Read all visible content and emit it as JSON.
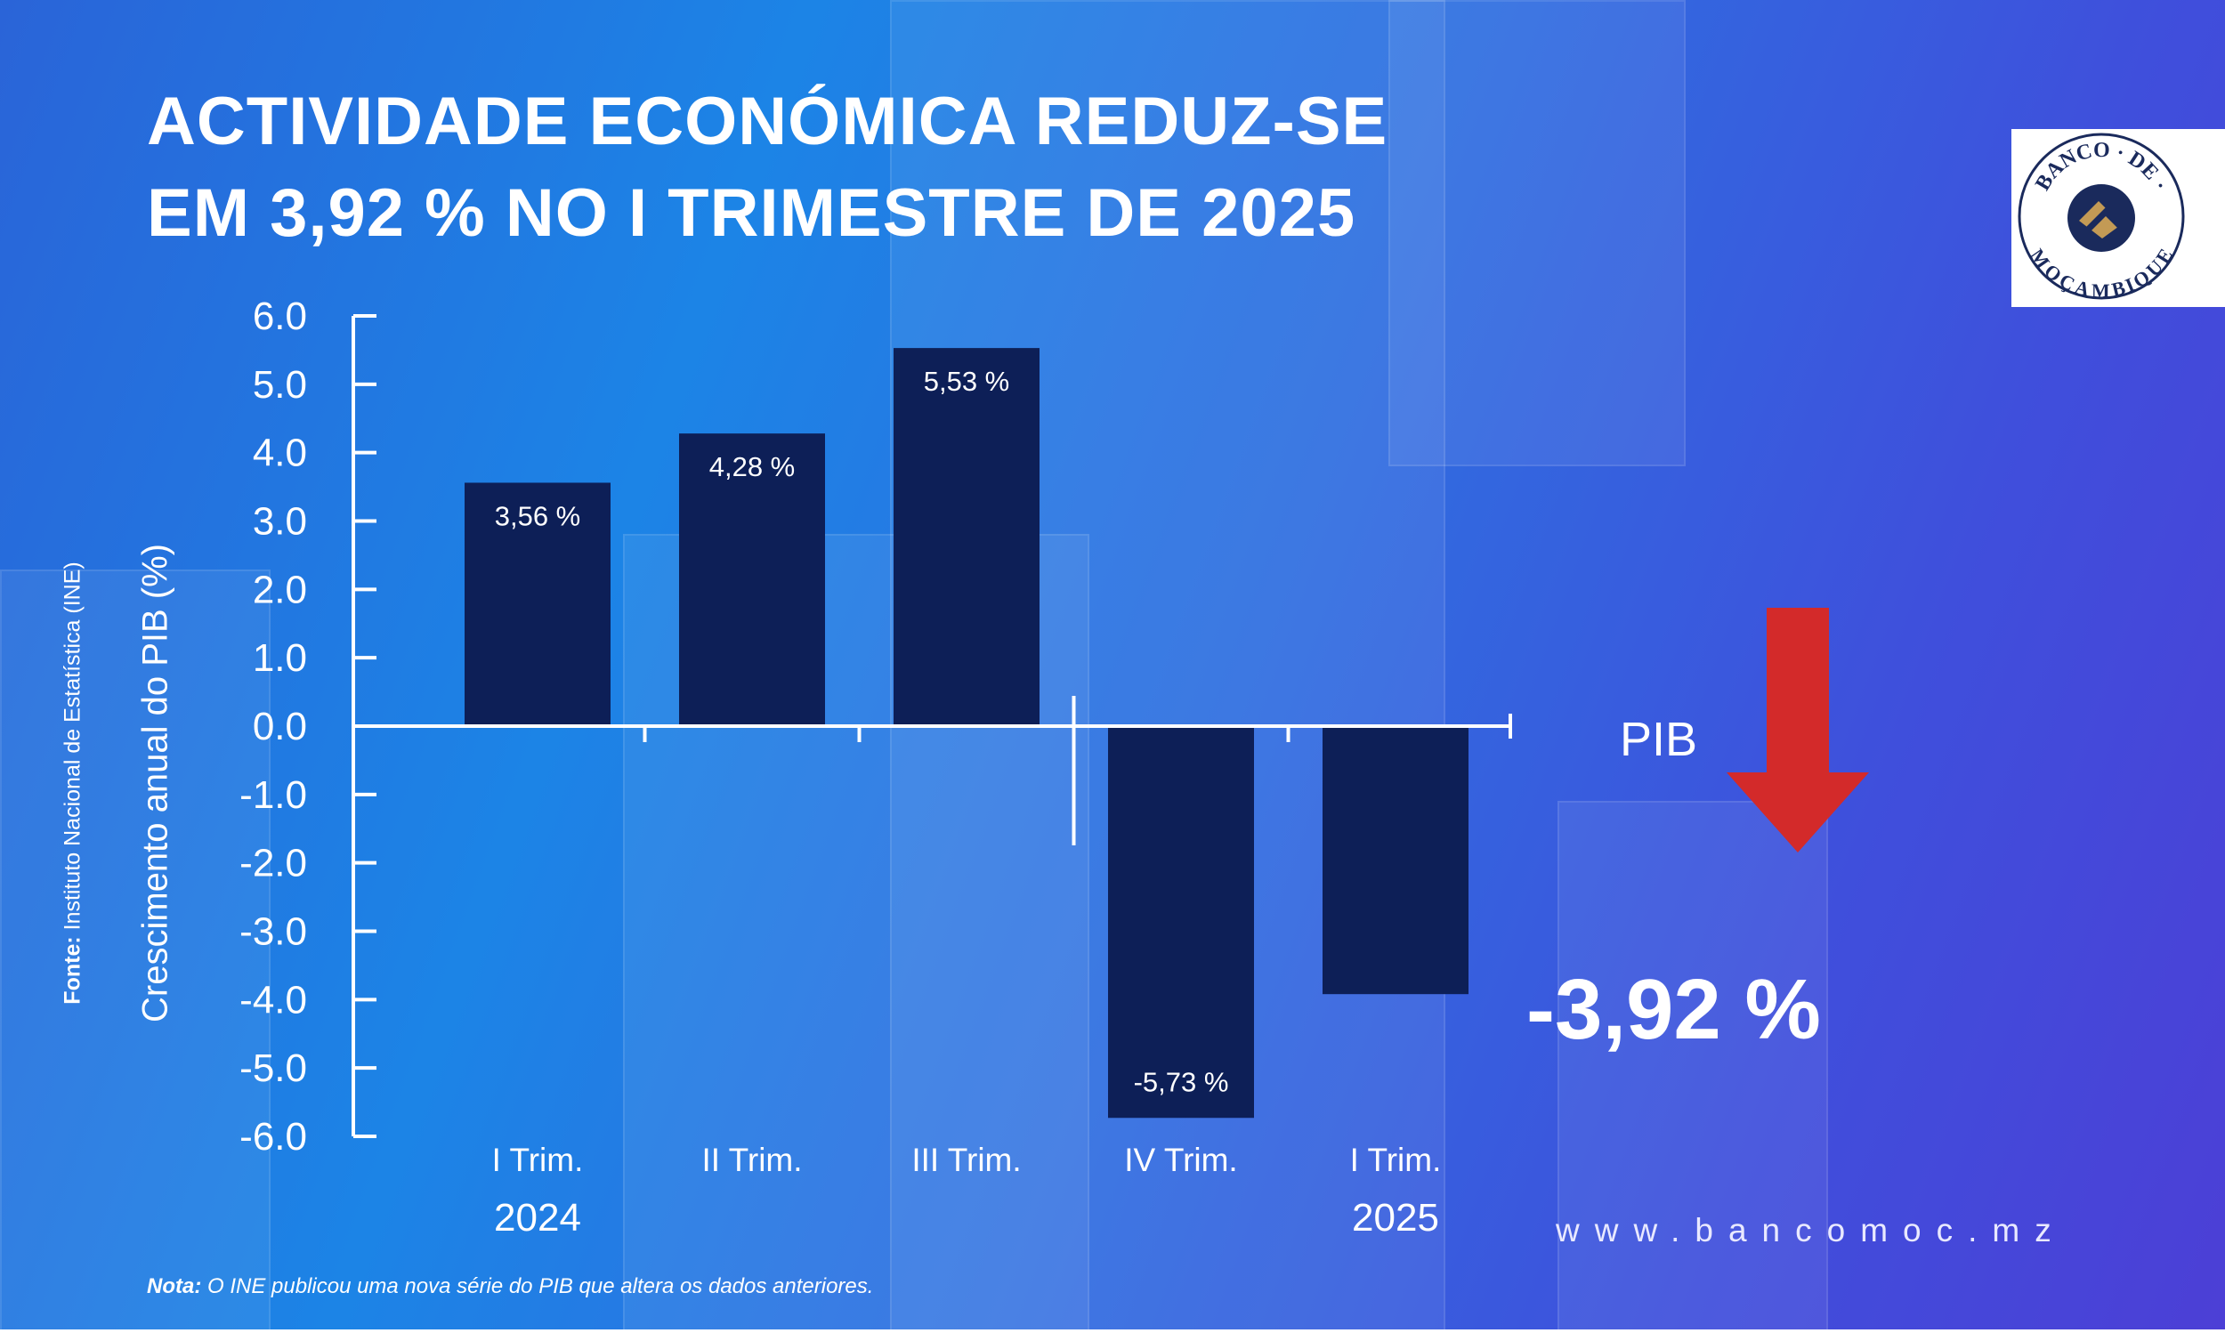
{
  "title": {
    "line1": "ACTIVIDADE ECONÓMICA REDUZ-SE",
    "line2": "EM 3,92 % NO I TRIMESTRE DE 2025"
  },
  "logo": {
    "text_top": "BANCO · DE ·",
    "text_bottom": "MOÇAMBIQUE"
  },
  "source": {
    "label": "Fonte:",
    "text": " Instituto Nacional de Estatística (INE)"
  },
  "highlight": {
    "label": "PIB",
    "value": "-3,92 %",
    "arrow_color": "#d32a2a"
  },
  "website": "www.bancomoc.mz",
  "note": {
    "label": "Nota:",
    "text": " O INE publicou uma nova série do PIB que altera os dados anteriores."
  },
  "colors": {
    "bar": "#0d1f57",
    "axis": "#ffffff"
  },
  "chart_data": {
    "type": "bar",
    "title": "",
    "ylabel": "Crescimento anual do PIB (%)",
    "xlabel": "",
    "ylim": [
      -6.0,
      6.0
    ],
    "yticks": [
      "6.0",
      "5.0",
      "4.0",
      "3.0",
      "2.0",
      "1.0",
      "0.0",
      "-1.0",
      "-2.0",
      "-3.0",
      "-4.0",
      "-5.0",
      "-6.0"
    ],
    "categories": [
      "I Trim.",
      "II Trim.",
      "III Trim.",
      "IV Trim.",
      "I Trim."
    ],
    "values": [
      3.56,
      4.28,
      5.53,
      -5.73,
      -3.92
    ],
    "data_labels": [
      "3,56 %",
      "4,28 %",
      "5,53 %",
      "-5,73 %",
      ""
    ],
    "year_labels": [
      "2024",
      "2025"
    ],
    "grid": false,
    "legend": "none"
  }
}
